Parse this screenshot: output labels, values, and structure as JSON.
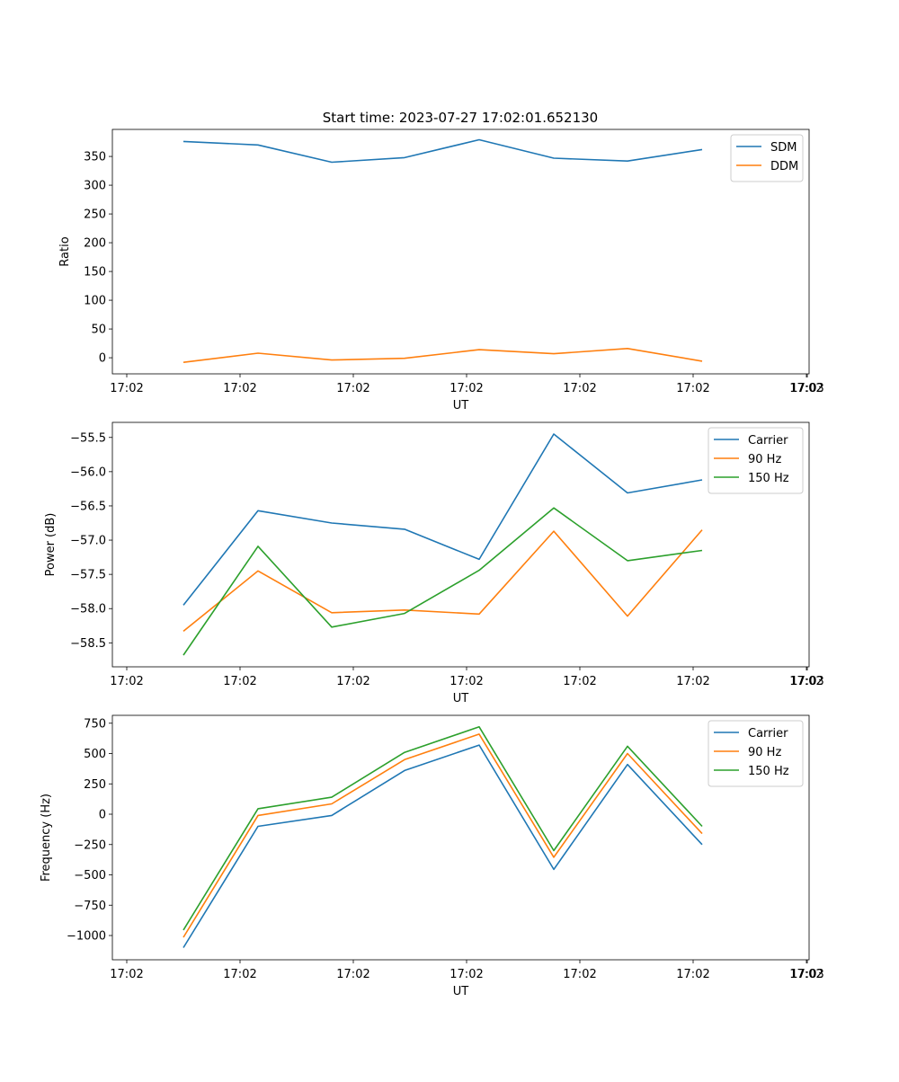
{
  "figure_title": "Start time: 2023-07-27 17:02:01.652130",
  "colors": {
    "blue": "#1f77b4",
    "orange": "#ff7f0e",
    "green": "#2ca02c"
  },
  "chart_data": [
    {
      "type": "line",
      "xlabel": "UT",
      "ylabel": "Ratio",
      "xticklabels": [
        "17:02",
        "17:02",
        "17:02",
        "17:02",
        "17:02",
        "17:02",
        "17:02",
        "17:03"
      ],
      "yticks": [
        0,
        50,
        100,
        150,
        200,
        250,
        300,
        350
      ],
      "yticklabels": [
        "0",
        "50",
        "100",
        "150",
        "200",
        "250",
        "300",
        "350"
      ],
      "ylim": [
        -28,
        397
      ],
      "legend_position": "top-right",
      "series": [
        {
          "name": "SDM",
          "color": "#1f77b4",
          "values": [
            376,
            370,
            340,
            348,
            379,
            347,
            342,
            362
          ]
        },
        {
          "name": "DDM",
          "color": "#ff7f0e",
          "values": [
            -8,
            8,
            -4,
            -1,
            14,
            7,
            16,
            -6
          ]
        }
      ]
    },
    {
      "type": "line",
      "xlabel": "UT",
      "ylabel": "Power (dB)",
      "xticklabels": [
        "17:02",
        "17:02",
        "17:02",
        "17:02",
        "17:02",
        "17:02",
        "17:02",
        "17:03"
      ],
      "yticks": [
        -58.5,
        -58.0,
        -57.5,
        -57.0,
        -56.5,
        -56.0,
        -55.5
      ],
      "yticklabels": [
        "−58.5",
        "−58.0",
        "−57.5",
        "−57.0",
        "−56.5",
        "−56.0",
        "−55.5"
      ],
      "ylim": [
        -58.85,
        -55.28
      ],
      "legend_position": "top-right",
      "series": [
        {
          "name": "Carrier",
          "color": "#1f77b4",
          "values": [
            -57.95,
            -56.57,
            -56.75,
            -56.84,
            -57.28,
            -55.45,
            -56.31,
            -56.12
          ]
        },
        {
          "name": "90 Hz",
          "color": "#ff7f0e",
          "values": [
            -58.33,
            -57.45,
            -58.06,
            -58.02,
            -58.08,
            -56.87,
            -58.11,
            -56.85
          ]
        },
        {
          "name": "150 Hz",
          "color": "#2ca02c",
          "values": [
            -58.68,
            -57.09,
            -58.27,
            -58.07,
            -57.44,
            -56.53,
            -57.3,
            -57.15
          ]
        }
      ]
    },
    {
      "type": "line",
      "xlabel": "UT",
      "ylabel": "Frequency (Hz)",
      "xticklabels": [
        "17:02",
        "17:02",
        "17:02",
        "17:02",
        "17:02",
        "17:02",
        "17:02",
        "17:03"
      ],
      "yticks": [
        -1000,
        -750,
        -500,
        -250,
        0,
        250,
        500,
        750
      ],
      "yticklabels": [
        "−1000",
        "−750",
        "−500",
        "−250",
        "0",
        "250",
        "500",
        "750"
      ],
      "ylim": [
        -1200,
        815
      ],
      "legend_position": "top-right",
      "series": [
        {
          "name": "Carrier",
          "color": "#1f77b4",
          "values": [
            -1100,
            -100,
            -10,
            360,
            570,
            -455,
            410,
            -250
          ]
        },
        {
          "name": "90 Hz",
          "color": "#ff7f0e",
          "values": [
            -1015,
            -10,
            85,
            450,
            660,
            -355,
            500,
            -160
          ]
        },
        {
          "name": "150 Hz",
          "color": "#2ca02c",
          "values": [
            -955,
            45,
            140,
            510,
            720,
            -300,
            560,
            -100
          ]
        }
      ]
    }
  ]
}
